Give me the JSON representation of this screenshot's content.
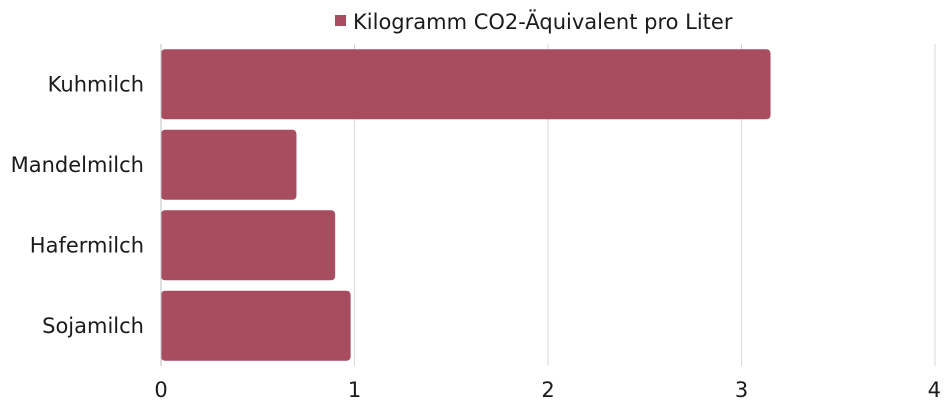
{
  "chart_data": {
    "type": "bar",
    "orientation": "horizontal",
    "categories": [
      "Kuhmilch",
      "Mandelmilch",
      "Hafermilch",
      "Sojamilch"
    ],
    "series": [
      {
        "name": "Kilogramm CO2-Äquivalent pro Liter",
        "values": [
          3.15,
          0.7,
          0.9,
          0.98
        ],
        "color": "#a84d60"
      }
    ],
    "xlim": [
      0,
      4
    ],
    "xticks": [
      "0",
      "1",
      "2",
      "3",
      "4"
    ],
    "grid": "vertical",
    "legend": "top-center"
  }
}
